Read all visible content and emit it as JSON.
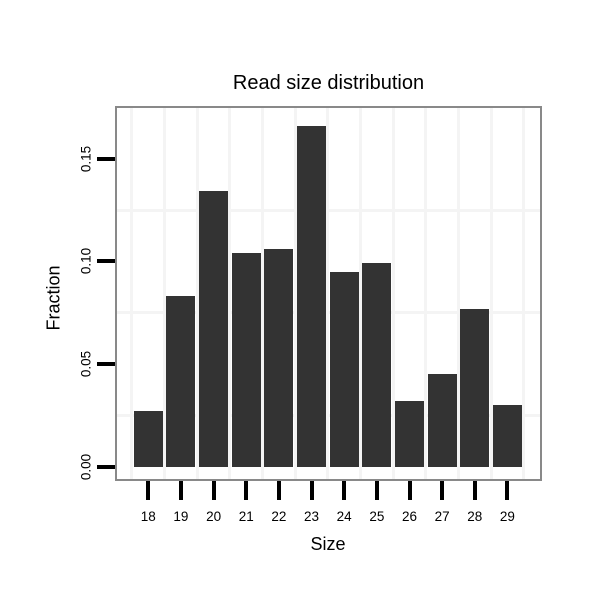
{
  "chart_data": {
    "type": "bar",
    "title": "Read size distribution",
    "xlabel": "Size",
    "ylabel": "Fraction",
    "categories": [
      "18",
      "19",
      "20",
      "21",
      "22",
      "23",
      "24",
      "25",
      "26",
      "27",
      "28",
      "29"
    ],
    "values": [
      0.027,
      0.083,
      0.134,
      0.104,
      0.106,
      0.166,
      0.095,
      0.099,
      0.032,
      0.045,
      0.077,
      0.03
    ],
    "ytick_labels": [
      "0.00",
      "0.05",
      "0.10",
      "0.15"
    ],
    "ytick_values": [
      0,
      0.05,
      0.1,
      0.15
    ],
    "minor_gridline_values": [
      0.025,
      0.075,
      0.125
    ],
    "ylim": [
      0,
      0.175
    ],
    "legend": "none",
    "grid": "faint minor gridlines only, horizontal and vertical",
    "colors": {
      "bar": "#333333",
      "panel_border": "#898989",
      "gridline": "#f4f4f4",
      "text": "#000000",
      "background": "#ffffff"
    }
  }
}
